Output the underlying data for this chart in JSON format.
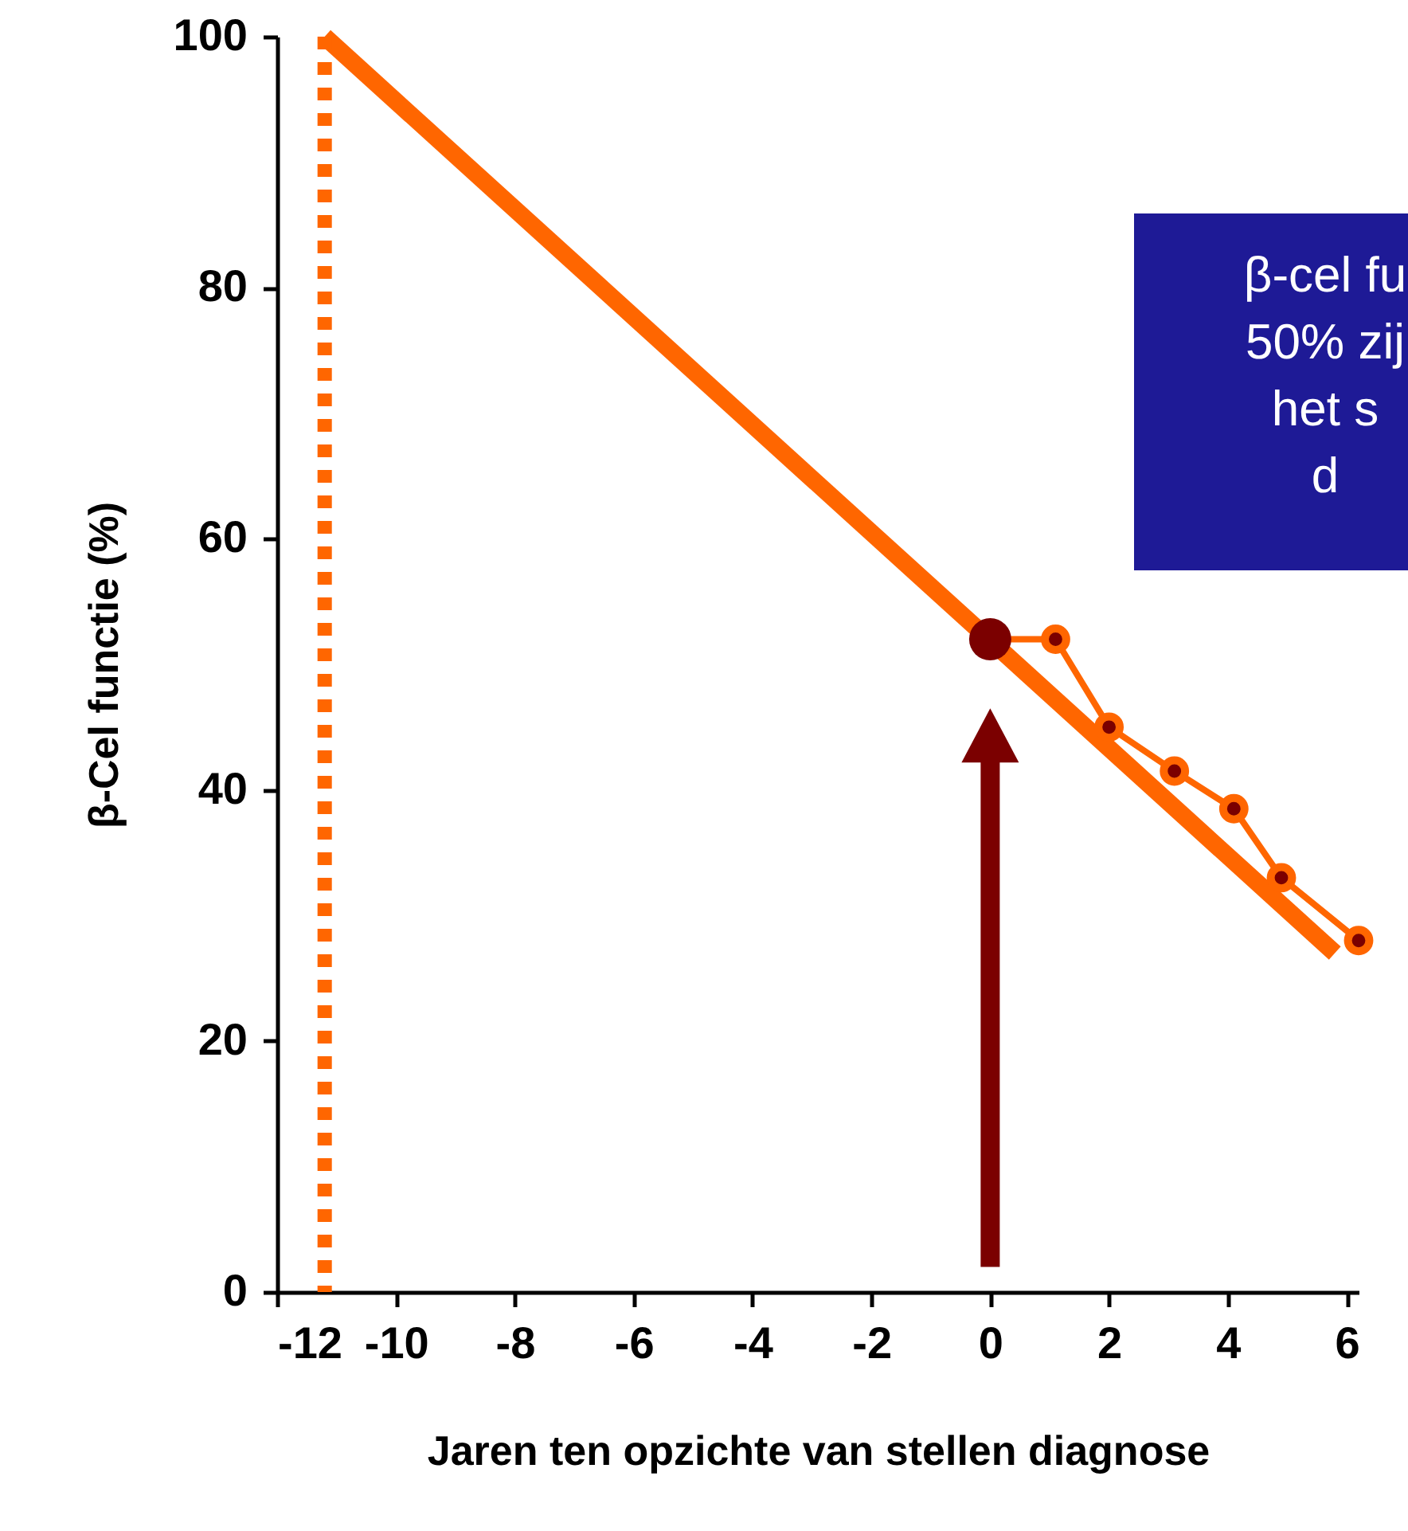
{
  "chart_data": {
    "type": "line",
    "xlabel": "Jaren ten opzichte van stellen diagnose",
    "ylabel": "β-Cel functie (%)",
    "xlim": [
      -12,
      6.2
    ],
    "xticks": [
      -12,
      -10,
      -8,
      -6,
      -4,
      -2,
      0,
      2,
      4,
      6
    ],
    "ylim": [
      0,
      100
    ],
    "yticks": [
      0,
      20,
      40,
      60,
      80,
      100
    ],
    "grid": false,
    "series": [
      {
        "color": "#ff6600",
        "x": [
          -11.2,
          5.8
        ],
        "values": [
          100,
          27
        ],
        "marker": "none"
      },
      {
        "color": "#ff6600",
        "x": [
          0,
          1.1,
          2,
          3.1,
          4.1,
          4.9,
          6.2
        ],
        "values": [
          52,
          52,
          45,
          41.5,
          38.5,
          33,
          28
        ],
        "marker": "circle"
      },
      {
        "type": "scatter",
        "color": "#7b0000",
        "x": [
          0
        ],
        "values": [
          52
        ],
        "marker": "circle"
      }
    ],
    "ref_lines": [
      {
        "axis": "x",
        "value": -11.2,
        "color": "#ff6600",
        "line_style": "dotted"
      }
    ],
    "annotations": [
      "β-cel fu\n50% zij\nhet s\nd"
    ]
  }
}
